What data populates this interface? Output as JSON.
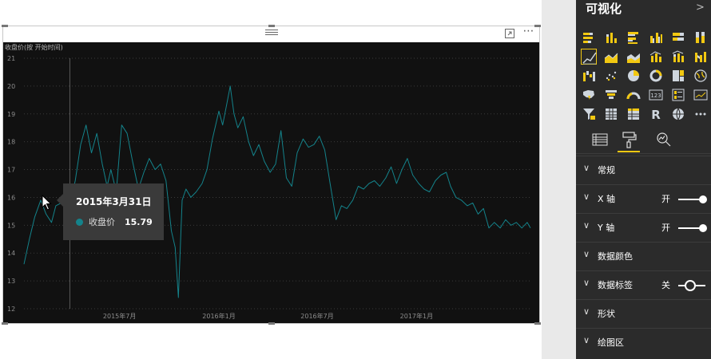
{
  "chart_data": {
    "type": "line",
    "title": "收盘价(按 开始时间)",
    "xlabel": "",
    "ylabel": "",
    "x_tick_labels": [
      "2015年7月",
      "2016年1月",
      "2016年7月",
      "2017年1月"
    ],
    "x_tick_dates": [
      "2015-07-01",
      "2016-01-01",
      "2016-07-01",
      "2017-01-01"
    ],
    "xlim": [
      "2015-01-05",
      "2017-07-31"
    ],
    "ylim": [
      12,
      21
    ],
    "y_ticks": [
      12,
      13,
      14,
      15,
      16,
      17,
      18,
      19,
      20,
      21
    ],
    "grid": true,
    "series": [
      {
        "color": "#14838b",
        "points": [
          [
            "2015-01-05",
            13.6
          ],
          [
            "2015-01-15",
            14.5
          ],
          [
            "2015-01-25",
            15.3
          ],
          [
            "2015-02-05",
            15.9
          ],
          [
            "2015-02-15",
            15.4
          ],
          [
            "2015-02-25",
            15.1
          ],
          [
            "2015-03-05",
            15.7
          ],
          [
            "2015-03-15",
            15.8
          ],
          [
            "2015-03-25",
            16.0
          ],
          [
            "2015-03-31",
            15.79
          ],
          [
            "2015-04-10",
            16.6
          ],
          [
            "2015-04-20",
            17.9
          ],
          [
            "2015-04-30",
            18.6
          ],
          [
            "2015-05-10",
            17.6
          ],
          [
            "2015-05-20",
            18.3
          ],
          [
            "2015-05-30",
            17.2
          ],
          [
            "2015-06-08",
            16.4
          ],
          [
            "2015-06-15",
            17.0
          ],
          [
            "2015-06-25",
            16.2
          ],
          [
            "2015-07-05",
            18.6
          ],
          [
            "2015-07-15",
            18.3
          ],
          [
            "2015-07-25",
            17.3
          ],
          [
            "2015-08-05",
            16.3
          ],
          [
            "2015-08-15",
            16.9
          ],
          [
            "2015-08-25",
            17.4
          ],
          [
            "2015-09-05",
            17.0
          ],
          [
            "2015-09-15",
            17.2
          ],
          [
            "2015-09-25",
            16.6
          ],
          [
            "2015-10-05",
            14.8
          ],
          [
            "2015-10-12",
            14.2
          ],
          [
            "2015-10-18",
            12.4
          ],
          [
            "2015-10-25",
            15.9
          ],
          [
            "2015-11-01",
            16.3
          ],
          [
            "2015-11-10",
            16.0
          ],
          [
            "2015-11-20",
            16.2
          ],
          [
            "2015-12-01",
            16.5
          ],
          [
            "2015-12-10",
            17.0
          ],
          [
            "2015-12-20",
            18.1
          ],
          [
            "2016-01-01",
            19.1
          ],
          [
            "2016-01-08",
            18.6
          ],
          [
            "2016-01-15",
            19.3
          ],
          [
            "2016-01-22",
            20.0
          ],
          [
            "2016-01-29",
            19.0
          ],
          [
            "2016-02-05",
            18.5
          ],
          [
            "2016-02-15",
            18.9
          ],
          [
            "2016-02-25",
            18.0
          ],
          [
            "2016-03-05",
            17.5
          ],
          [
            "2016-03-15",
            17.9
          ],
          [
            "2016-03-25",
            17.3
          ],
          [
            "2016-04-05",
            16.9
          ],
          [
            "2016-04-15",
            17.2
          ],
          [
            "2016-04-25",
            18.4
          ],
          [
            "2016-05-05",
            16.7
          ],
          [
            "2016-05-15",
            16.4
          ],
          [
            "2016-05-25",
            17.6
          ],
          [
            "2016-06-05",
            18.1
          ],
          [
            "2016-06-15",
            17.8
          ],
          [
            "2016-06-25",
            17.9
          ],
          [
            "2016-07-05",
            18.2
          ],
          [
            "2016-07-15",
            17.7
          ],
          [
            "2016-07-25",
            16.5
          ],
          [
            "2016-08-05",
            15.2
          ],
          [
            "2016-08-15",
            15.7
          ],
          [
            "2016-08-25",
            15.6
          ],
          [
            "2016-09-05",
            15.9
          ],
          [
            "2016-09-15",
            16.4
          ],
          [
            "2016-09-25",
            16.3
          ],
          [
            "2016-10-05",
            16.5
          ],
          [
            "2016-10-15",
            16.6
          ],
          [
            "2016-10-25",
            16.4
          ],
          [
            "2016-11-05",
            16.7
          ],
          [
            "2016-11-15",
            17.1
          ],
          [
            "2016-11-25",
            16.5
          ],
          [
            "2016-12-05",
            17.0
          ],
          [
            "2016-12-15",
            17.4
          ],
          [
            "2016-12-25",
            16.8
          ],
          [
            "2017-01-05",
            16.5
          ],
          [
            "2017-01-15",
            16.3
          ],
          [
            "2017-01-25",
            16.2
          ],
          [
            "2017-02-05",
            16.6
          ],
          [
            "2017-02-15",
            16.8
          ],
          [
            "2017-02-25",
            16.9
          ],
          [
            "2017-03-05",
            16.4
          ],
          [
            "2017-03-15",
            16.0
          ],
          [
            "2017-03-25",
            15.9
          ],
          [
            "2017-04-05",
            15.7
          ],
          [
            "2017-04-15",
            15.8
          ],
          [
            "2017-04-25",
            15.4
          ],
          [
            "2017-05-05",
            15.6
          ],
          [
            "2017-05-15",
            14.9
          ],
          [
            "2017-05-25",
            15.1
          ],
          [
            "2017-06-05",
            14.9
          ],
          [
            "2017-06-15",
            15.2
          ],
          [
            "2017-06-25",
            15.0
          ],
          [
            "2017-07-05",
            15.1
          ],
          [
            "2017-07-15",
            14.9
          ],
          [
            "2017-07-25",
            15.1
          ],
          [
            "2017-07-31",
            14.9
          ]
        ]
      }
    ]
  },
  "tooltip": {
    "date": "2015年3月31日",
    "label": "收盘价",
    "value": "15.79",
    "hover_x": "2015-03-31",
    "color": "#14838b"
  },
  "pane": {
    "title": "可视化",
    "collapse_icon": "chevron-right-icon",
    "viz_icons": [
      "stacked-bar-icon",
      "stacked-column-icon",
      "clustered-bar-icon",
      "clustered-column-icon",
      "100-stacked-bar-icon",
      "100-stacked-column-icon",
      "line-chart-icon",
      "area-chart-icon",
      "stacked-area-icon",
      "line-clustered-column-icon",
      "line-stacked-column-icon",
      "ribbon-chart-icon",
      "waterfall-icon",
      "scatter-icon",
      "pie-icon",
      "donut-icon",
      "treemap-icon",
      "map-icon",
      "filled-map-icon",
      "funnel-icon",
      "gauge-icon",
      "card-icon",
      "multi-row-card-icon",
      "kpi-icon",
      "slicer-icon",
      "table-icon",
      "matrix-icon",
      "r-visual-icon",
      "globe-icon",
      "more-visuals-icon"
    ],
    "selected_icon": "line-chart-icon",
    "tabs": [
      "fields-tab-icon",
      "format-paint-roller-icon",
      "analytics-magnifier-icon"
    ],
    "active_tab": "format-paint-roller-icon",
    "sections": [
      {
        "label": "常规",
        "toggle": null
      },
      {
        "label": "X 轴",
        "toggle": "开"
      },
      {
        "label": "Y 轴",
        "toggle": "开"
      },
      {
        "label": "数据颜色",
        "toggle": null
      },
      {
        "label": "数据标签",
        "toggle": "关"
      },
      {
        "label": "形状",
        "toggle": null
      },
      {
        "label": "绘图区",
        "toggle": null
      }
    ]
  },
  "colors": {
    "chart_background": "#111111",
    "line": "#14838b",
    "pane_background": "#2b2b2b",
    "accent": "#f2c811"
  }
}
